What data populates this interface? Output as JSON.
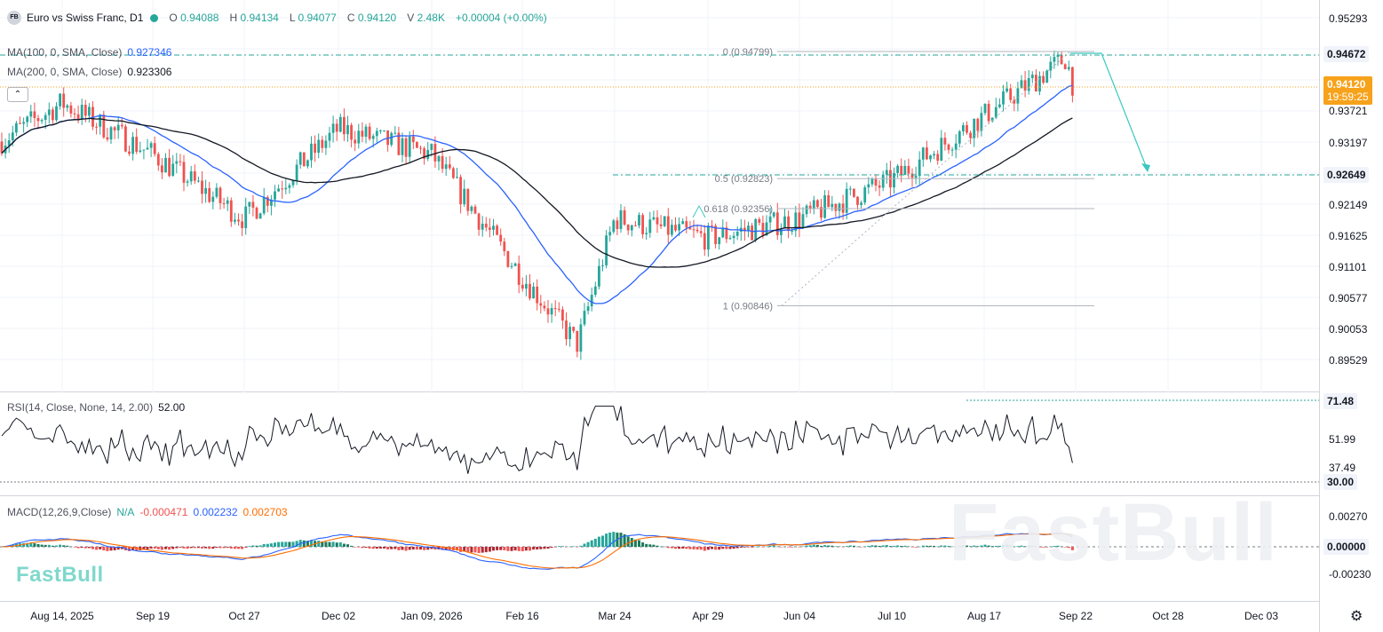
{
  "header": {
    "symbol_badge": "FB",
    "title": "Euro vs Swiss Franc, D1",
    "open_label": "O",
    "open": "0.94088",
    "high_label": "H",
    "high": "0.94134",
    "low_label": "L",
    "low": "0.94077",
    "close_label": "C",
    "close": "0.94120",
    "volume_label": "V",
    "volume": "2.48K",
    "change": "+0.00004 (+0.00%)"
  },
  "indicators": {
    "ma100": {
      "label": "MA(100, 0, SMA, Close)",
      "value": "0.927346",
      "color": "#2962ff"
    },
    "ma200": {
      "label": "MA(200, 0, SMA, Close)",
      "value": "0.923306",
      "color": "#131722"
    }
  },
  "price_axis": {
    "ticks": [
      "0.95293",
      "0.94672",
      "0.93721",
      "0.93197",
      "0.92649",
      "0.92149",
      "0.91625",
      "0.91101",
      "0.90577",
      "0.90053",
      "0.89529"
    ],
    "tag_high": {
      "value": "0.94672",
      "bg": "#f0f3fa"
    },
    "tag_current": {
      "value": "0.94120",
      "timer": "19:59:25",
      "bg": "#f7a21b"
    },
    "tag_target": {
      "value": "0.92649",
      "bg": "#f0f3fa"
    }
  },
  "fibonacci": {
    "level_0": "0 (0.94799)",
    "level_05": "0.5 (0.92823)",
    "level_0618": "0.618 (0.92356)",
    "level_1": "1 (0.90846)"
  },
  "rsi": {
    "label": "RSI(14, Close, None, 14, 2.00)",
    "value": "52.00",
    "ticks": [
      "51.99",
      "37.49"
    ],
    "tag_top": "71.48",
    "tag_bottom": "30.00"
  },
  "macd": {
    "label": "MACD(12,26,9,Close)",
    "hist_value": "N/A",
    "v1": "-0.000471",
    "v2": "0.002232",
    "v3": "0.002703",
    "ticks": [
      "0.00270",
      "0.00000",
      "-0.00230"
    ]
  },
  "time_axis": {
    "labels": [
      "Aug 14, 2025",
      "Sep 19",
      "Oct 27",
      "Dec 02",
      "Jan 09, 2026",
      "Feb 16",
      "Mar 24",
      "Apr 29",
      "Jun 04",
      "Jul 10",
      "Aug 17",
      "Sep 22",
      "Oct 28",
      "Dec 03"
    ]
  },
  "watermark": {
    "text": "FastBull"
  },
  "colors": {
    "bull": "#26a69a",
    "bear": "#ef5350",
    "ma100": "#2962ff",
    "ma200": "#131722",
    "macd_signal": "#ff6d00"
  },
  "icons": {
    "settings": "gear-icon",
    "collapse": "chevron-up-icon"
  },
  "chart_data": {
    "type": "candlestick",
    "series_points": [
      [
        "Aug 14, 2025",
        0.94
      ],
      [
        "Sep 19",
        0.932
      ],
      [
        "Oct 27",
        0.922
      ],
      [
        "Dec 02",
        0.936
      ],
      [
        "Jan 09, 2026",
        0.932
      ],
      [
        "Feb 16",
        0.913
      ],
      [
        "Mar 24",
        0.922
      ],
      [
        "Apr 29",
        0.919
      ],
      [
        "Jun 04",
        0.922
      ],
      [
        "Jul 10",
        0.928
      ],
      [
        "Aug 17",
        0.938
      ],
      [
        "Sep 22",
        0.9412
      ]
    ],
    "low_point": 0.9005,
    "high_point": 0.948,
    "projected_target": 0.92649,
    "ylim": [
      0.895,
      0.956
    ]
  }
}
